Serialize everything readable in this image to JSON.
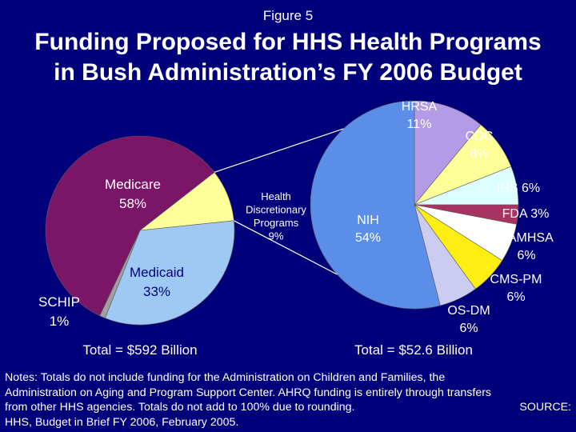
{
  "figure_label": "Figure 5",
  "title_lines": [
    "Funding Proposed for HHS Health Programs",
    "in Bush Administration’s FY 2006 Budget"
  ],
  "colors": {
    "background": "#00007a",
    "medicare": "#7a1568",
    "medicaid": "#9ec9f5",
    "schip": "#a0a0a0",
    "discretionary": "#ffff99",
    "nih": "#5b8ee8",
    "hrsa": "#b49be8",
    "cdc": "#ffff99",
    "ihs": "#ddffff",
    "fda": "#a83260",
    "samhsa": "#ffffff",
    "cms_pm": "#ffee11",
    "os_dm": "#ccccf2"
  },
  "chart_data": [
    {
      "type": "pie",
      "total_label": "Total = $592 Billion",
      "slices": [
        {
          "label": "Medicare",
          "value": 58,
          "display": "58%",
          "color_key": "medicare"
        },
        {
          "label": "Health Discretionary Programs",
          "value": 9,
          "display": "9%",
          "color_key": "discretionary"
        },
        {
          "label": "Medicaid",
          "value": 33,
          "display": "33%",
          "color_key": "medicaid"
        },
        {
          "label": "SCHIP",
          "value": 1,
          "display": "1%",
          "color_key": "schip"
        }
      ]
    },
    {
      "type": "pie",
      "total_label": "Total = $52.6 Billion",
      "slices": [
        {
          "label": "NIH",
          "value": 54,
          "display": "54%",
          "color_key": "nih"
        },
        {
          "label": "HRSA",
          "value": 11,
          "display": "11%",
          "color_key": "hrsa"
        },
        {
          "label": "CDC",
          "value": 8,
          "display": "8%",
          "color_key": "cdc"
        },
        {
          "label": "IHS",
          "value": 6,
          "display": "6%",
          "color_key": "ihs"
        },
        {
          "label": "FDA",
          "value": 3,
          "display": "3%",
          "color_key": "fda"
        },
        {
          "label": "SAMHSA",
          "value": 6,
          "display": "6%",
          "color_key": "samhsa"
        },
        {
          "label": "CMS-PM",
          "value": 6,
          "display": "6%",
          "color_key": "cms_pm"
        },
        {
          "label": "OS-DM",
          "value": 6,
          "display": "6%",
          "color_key": "os_dm"
        }
      ]
    }
  ],
  "notes_lines": [
    "Notes: Totals do not include funding for the Administration on Children and Families, the",
    "Administration on Aging and Program Support Center.  AHRQ funding is entirely through transfers",
    "from other HHS agencies. Totals do not add to 100% due to rounding.",
    "HHS, Budget in Brief FY 2006, February 2005."
  ],
  "notes_source_label": "SOURCE:"
}
